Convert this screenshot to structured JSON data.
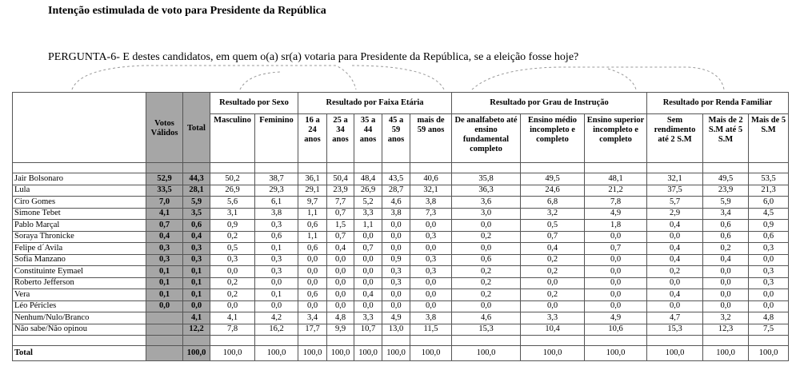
{
  "header": {
    "title": "Intenção estimulada de voto para Presidente da República",
    "question": "PERGUNTA-6- E destes candidatos, em quem o(a) sr(a) votaria para Presidente da República, se a eleição fosse hoje?"
  },
  "table": {
    "groups": [
      "Resultado por Sexo",
      "Resultado por Faixa Etária",
      "Resultado por Grau de Instrução",
      "Resultado por Renda Familiar"
    ],
    "columns": [
      "Votos Válidos",
      "Total",
      "Masculino",
      "Feminino",
      "16 a 24 anos",
      "25 a 34 anos",
      "35 a 44 anos",
      "45 a 59 anos",
      "mais de 59 anos",
      "De analfabeto até ensino fundamental completo",
      "Ensino médio incompleto e completo",
      "Ensino superior incompleto e completo",
      "Sem rendimento até 2 S.M",
      "Mais de 2 S.M até 5 S.M",
      "Mais de 5 S.M"
    ],
    "rows": [
      [
        "Jair Bolsonaro",
        "52,9",
        "44,3",
        "50,2",
        "38,7",
        "36,1",
        "50,4",
        "48,4",
        "43,5",
        "40,6",
        "35,8",
        "49,5",
        "48,1",
        "32,1",
        "49,5",
        "53,5"
      ],
      [
        "Lula",
        "33,5",
        "28,1",
        "26,9",
        "29,3",
        "29,1",
        "23,9",
        "26,9",
        "28,7",
        "32,1",
        "36,3",
        "24,6",
        "21,2",
        "37,5",
        "23,9",
        "21,3"
      ],
      [
        "Ciro Gomes",
        "7,0",
        "5,9",
        "5,6",
        "6,1",
        "9,7",
        "7,7",
        "5,2",
        "4,6",
        "3,8",
        "3,6",
        "6,8",
        "7,8",
        "5,7",
        "5,9",
        "6,0"
      ],
      [
        "Simone Tebet",
        "4,1",
        "3,5",
        "3,1",
        "3,8",
        "1,1",
        "0,7",
        "3,3",
        "3,8",
        "7,3",
        "3,0",
        "3,2",
        "4,9",
        "2,9",
        "3,4",
        "4,5"
      ],
      [
        "Pablo Marçal",
        "0,7",
        "0,6",
        "0,9",
        "0,3",
        "0,6",
        "1,5",
        "1,1",
        "0,0",
        "0,0",
        "0,0",
        "0,5",
        "1,8",
        "0,4",
        "0,6",
        "0,9"
      ],
      [
        "Soraya Thronicke",
        "0,4",
        "0,4",
        "0,2",
        "0,6",
        "1,1",
        "0,7",
        "0,0",
        "0,0",
        "0,3",
        "0,2",
        "0,7",
        "0,0",
        "0,0",
        "0,6",
        "0,6"
      ],
      [
        "Felipe d´Avila",
        "0,3",
        "0,3",
        "0,5",
        "0,1",
        "0,6",
        "0,4",
        "0,7",
        "0,0",
        "0,0",
        "0,0",
        "0,4",
        "0,7",
        "0,4",
        "0,2",
        "0,3"
      ],
      [
        "Sofia Manzano",
        "0,3",
        "0,3",
        "0,3",
        "0,3",
        "0,0",
        "0,0",
        "0,0",
        "0,9",
        "0,3",
        "0,6",
        "0,2",
        "0,0",
        "0,4",
        "0,4",
        "0,0"
      ],
      [
        "Constituinte Eymael",
        "0,1",
        "0,1",
        "0,0",
        "0,3",
        "0,0",
        "0,0",
        "0,0",
        "0,3",
        "0,3",
        "0,2",
        "0,2",
        "0,0",
        "0,2",
        "0,0",
        "0,3"
      ],
      [
        "Roberto Jefferson",
        "0,1",
        "0,1",
        "0,2",
        "0,0",
        "0,0",
        "0,0",
        "0,0",
        "0,3",
        "0,0",
        "0,2",
        "0,0",
        "0,0",
        "0,0",
        "0,0",
        "0,3"
      ],
      [
        "Vera",
        "0,1",
        "0,1",
        "0,2",
        "0,1",
        "0,6",
        "0,0",
        "0,4",
        "0,0",
        "0,0",
        "0,2",
        "0,2",
        "0,0",
        "0,4",
        "0,0",
        "0,0"
      ],
      [
        "Léo Péricles",
        "0,0",
        "0,0",
        "0,0",
        "0,0",
        "0,0",
        "0,0",
        "0,0",
        "0,0",
        "0,0",
        "0,0",
        "0,0",
        "0,0",
        "0,0",
        "0,0",
        "0,0"
      ],
      [
        "Nenhum/Nulo/Branco",
        null,
        "4,1",
        "4,1",
        "4,2",
        "3,4",
        "4,8",
        "3,3",
        "4,9",
        "3,8",
        "4,6",
        "3,3",
        "4,9",
        "4,7",
        "3,2",
        "4,8"
      ],
      [
        "Não sabe/Não opinou",
        null,
        "12,2",
        "7,8",
        "16,2",
        "17,7",
        "9,9",
        "10,7",
        "13,0",
        "11,5",
        "15,3",
        "10,4",
        "10,6",
        "15,3",
        "12,3",
        "7,5"
      ]
    ],
    "total_row": [
      "Total",
      null,
      "100,0",
      "100,0",
      "100,0",
      "100,0",
      "100,0",
      "100,0",
      "100,0",
      "100,0",
      "100,0",
      "100,0",
      "100,0",
      "100,0",
      "100,0",
      "100,0"
    ]
  }
}
